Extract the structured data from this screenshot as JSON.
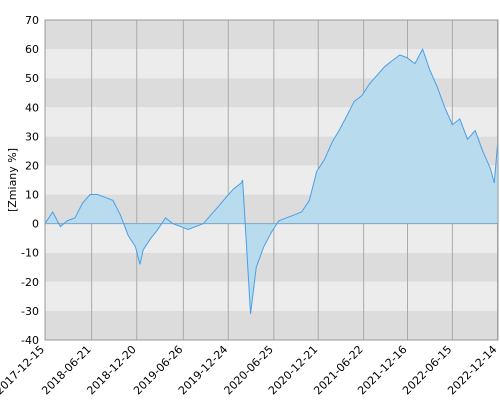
{
  "chart_data": {
    "type": "area",
    "y_label": "[Zmiany %]",
    "x": [
      "2017-12-15",
      "2018-01-15",
      "2018-02-15",
      "2018-03-15",
      "2018-04-15",
      "2018-05-15",
      "2018-06-15",
      "2018-07-15",
      "2018-08-15",
      "2018-09-15",
      "2018-10-15",
      "2018-11-15",
      "2018-12-15",
      "2019-01-02",
      "2019-01-15",
      "2019-02-15",
      "2019-03-15",
      "2019-04-15",
      "2019-05-15",
      "2019-06-15",
      "2019-07-15",
      "2019-08-15",
      "2019-09-15",
      "2019-10-15",
      "2019-11-15",
      "2019-12-15",
      "2020-01-15",
      "2020-02-15",
      "2020-02-20",
      "2020-03-23",
      "2020-04-15",
      "2020-05-15",
      "2020-06-15",
      "2020-07-15",
      "2020-08-15",
      "2020-09-15",
      "2020-10-15",
      "2020-11-15",
      "2020-12-15",
      "2021-01-15",
      "2021-02-15",
      "2021-03-15",
      "2021-04-15",
      "2021-05-15",
      "2021-06-15",
      "2021-07-15",
      "2021-08-15",
      "2021-09-15",
      "2021-10-15",
      "2021-11-15",
      "2021-12-15",
      "2022-01-15",
      "2022-02-15",
      "2022-03-15",
      "2022-04-15",
      "2022-05-15",
      "2022-06-15",
      "2022-07-15",
      "2022-08-15",
      "2022-09-15",
      "2022-10-15",
      "2022-11-15",
      "2022-12-01",
      "2022-12-14"
    ],
    "values": [
      0,
      4,
      -1,
      1,
      2,
      7,
      10,
      10,
      9,
      8,
      3,
      -4,
      -8,
      -14,
      -9,
      -5,
      -2,
      2,
      0,
      -1,
      -2,
      -1,
      0,
      3,
      6,
      9,
      12,
      14,
      15,
      -31,
      -15,
      -8,
      -3,
      1,
      2,
      3,
      4,
      8,
      18,
      22,
      28,
      32,
      37,
      42,
      44,
      48,
      51,
      54,
      56,
      58,
      57,
      55,
      60,
      53,
      47,
      40,
      34,
      36,
      29,
      32,
      25,
      19,
      14,
      27
    ],
    "line_color": "#4a9ee8",
    "fill_color": "#b8dcee",
    "xlim": [
      "2017-12-15",
      "2022-12-16"
    ],
    "xticks": [
      "2017-12-15",
      "2018-06-21",
      "2018-12-20",
      "2019-06-26",
      "2019-12-24",
      "2020-06-25",
      "2020-12-21",
      "2021-06-22",
      "2021-12-16",
      "2022-06-15",
      "2022-12-14"
    ],
    "ylim": [
      -40,
      70
    ],
    "yticks": [
      -40,
      -30,
      -20,
      -10,
      0,
      10,
      20,
      30,
      40,
      50,
      60,
      70
    ],
    "grid": true
  }
}
